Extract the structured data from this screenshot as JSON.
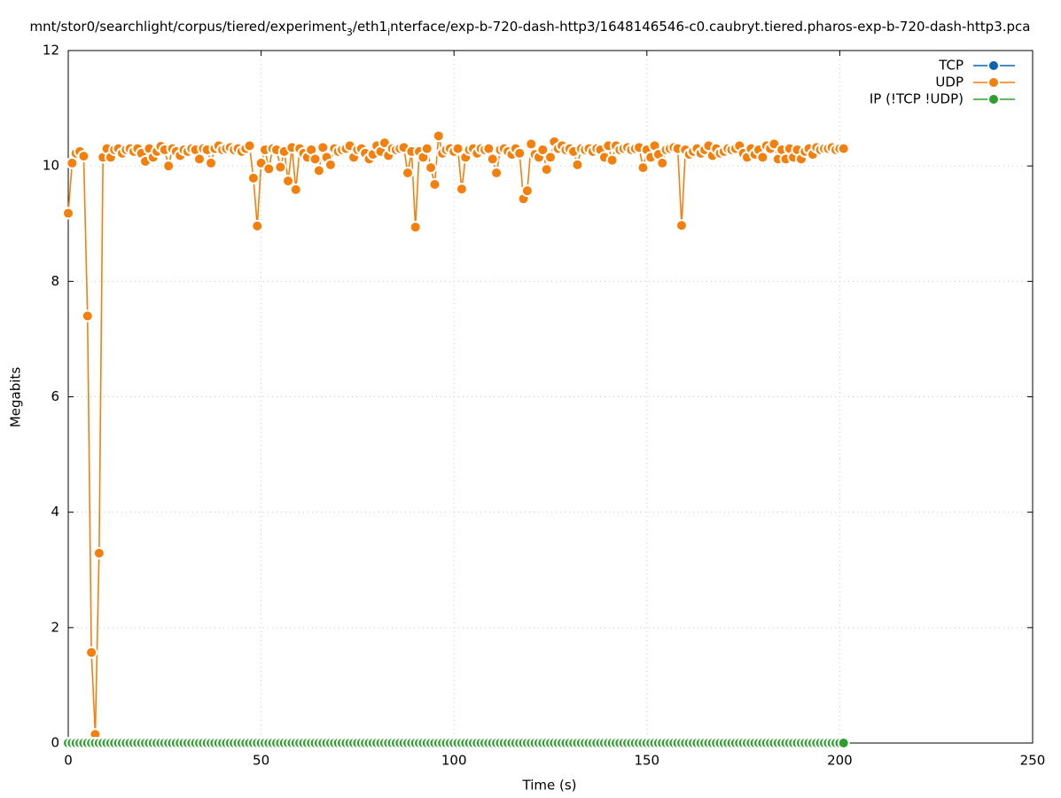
{
  "chart_data": {
    "type": "line",
    "title": [
      {
        "text": "mnt/stor0/searchlight/corpus/tiered/experiment"
      },
      {
        "text": "3",
        "sub": true
      },
      {
        "text": "/eth1"
      },
      {
        "text": "i",
        "sub": true
      },
      {
        "text": "nterface/exp-b-720-dash-http3/1648146546-c0.caubryt.tiered.pharos-exp-b-720-dash-http3.pca"
      }
    ],
    "x_label": "Time (s)",
    "y_label": "Megabits",
    "xlim": [
      0,
      250
    ],
    "xticks": [
      0,
      50,
      100,
      150,
      200,
      250
    ],
    "ylim": [
      0,
      12
    ],
    "yticks": [
      0,
      2,
      4,
      6,
      8,
      10,
      12
    ],
    "grid": true,
    "legend": "top-right",
    "x": [
      0,
      1,
      2,
      3,
      4,
      5,
      6,
      7,
      8,
      9,
      10,
      11,
      12,
      13,
      14,
      15,
      16,
      17,
      18,
      19,
      20,
      21,
      22,
      23,
      24,
      25,
      26,
      27,
      28,
      29,
      30,
      31,
      32,
      33,
      34,
      35,
      36,
      37,
      38,
      39,
      40,
      41,
      42,
      43,
      44,
      45,
      46,
      47,
      48,
      49,
      50,
      51,
      52,
      53,
      54,
      55,
      56,
      57,
      58,
      59,
      60,
      61,
      62,
      63,
      64,
      65,
      66,
      67,
      68,
      69,
      70,
      71,
      72,
      73,
      74,
      75,
      76,
      77,
      78,
      79,
      80,
      81,
      82,
      83,
      84,
      85,
      86,
      87,
      88,
      89,
      90,
      91,
      92,
      93,
      94,
      95,
      96,
      97,
      98,
      99,
      100,
      101,
      102,
      103,
      104,
      105,
      106,
      107,
      108,
      109,
      110,
      111,
      112,
      113,
      114,
      115,
      116,
      117,
      118,
      119,
      120,
      121,
      122,
      123,
      124,
      125,
      126,
      127,
      128,
      129,
      130,
      131,
      132,
      133,
      134,
      135,
      136,
      137,
      138,
      139,
      140,
      141,
      142,
      143,
      144,
      145,
      146,
      147,
      148,
      149,
      150,
      151,
      152,
      153,
      154,
      155,
      156,
      157,
      158,
      159,
      160,
      161,
      162,
      163,
      164,
      165,
      166,
      167,
      168,
      169,
      170,
      171,
      172,
      173,
      174,
      175,
      176,
      177,
      178,
      179,
      180,
      181,
      182,
      183,
      184,
      185,
      186,
      187,
      188,
      189,
      190,
      191,
      192,
      193,
      194,
      195,
      196,
      197,
      198,
      199,
      200,
      201
    ],
    "series": [
      {
        "name": "TCP",
        "color": "#0b63b0",
        "x": [],
        "values": []
      },
      {
        "name": "UDP",
        "color": "#f57f0c",
        "values": [
          9.18,
          10.05,
          10.22,
          10.25,
          10.17,
          7.4,
          1.57,
          0.15,
          3.29,
          10.15,
          10.3,
          10.15,
          10.28,
          10.3,
          10.22,
          10.28,
          10.3,
          10.25,
          10.3,
          10.22,
          10.08,
          10.3,
          10.15,
          10.25,
          10.34,
          10.28,
          10.0,
          10.3,
          10.25,
          10.18,
          10.28,
          10.25,
          10.3,
          10.28,
          10.12,
          10.3,
          10.28,
          10.05,
          10.3,
          10.35,
          10.28,
          10.3,
          10.32,
          10.28,
          10.3,
          10.25,
          10.3,
          10.35,
          9.79,
          8.96,
          10.05,
          10.28,
          9.95,
          10.3,
          10.28,
          9.98,
          10.25,
          9.74,
          10.32,
          9.59,
          10.3,
          10.22,
          10.15,
          10.28,
          10.12,
          9.92,
          10.32,
          10.15,
          10.02,
          10.3,
          10.25,
          10.28,
          10.3,
          10.35,
          10.15,
          10.28,
          10.3,
          10.22,
          10.12,
          10.2,
          10.35,
          10.25,
          10.4,
          10.18,
          10.3,
          10.28,
          10.3,
          10.32,
          9.88,
          10.25,
          8.94,
          10.25,
          10.15,
          10.3,
          9.97,
          9.68,
          10.52,
          10.22,
          10.28,
          10.3,
          10.25,
          10.3,
          9.6,
          10.15,
          10.28,
          10.3,
          10.22,
          10.3,
          10.28,
          10.3,
          10.12,
          9.88,
          10.28,
          10.3,
          10.25,
          10.2,
          10.3,
          10.22,
          9.43,
          9.57,
          10.38,
          10.2,
          10.15,
          10.28,
          9.94,
          10.15,
          10.42,
          10.3,
          10.35,
          10.28,
          10.3,
          10.25,
          10.02,
          10.3,
          10.28,
          10.3,
          10.25,
          10.3,
          10.28,
          10.15,
          10.35,
          10.1,
          10.35,
          10.28,
          10.3,
          10.32,
          10.28,
          10.3,
          10.32,
          9.97,
          10.28,
          10.15,
          10.35,
          10.2,
          10.05,
          10.28,
          10.3,
          10.32,
          10.3,
          8.97,
          10.28,
          10.2,
          10.25,
          10.3,
          10.22,
          10.28,
          10.35,
          10.18,
          10.3,
          10.22,
          10.25,
          10.3,
          10.28,
          10.3,
          10.35,
          10.22,
          10.15,
          10.3,
          10.2,
          10.28,
          10.15,
          10.35,
          10.3,
          10.38,
          10.12,
          10.28,
          10.12,
          10.3,
          10.15,
          10.28,
          10.12,
          10.25,
          10.3,
          10.2,
          10.32,
          10.28,
          10.3,
          10.3,
          10.32,
          10.28,
          10.3,
          10.3
        ]
      },
      {
        "name": "IP (!TCP  !UDP)",
        "color": "#2ca02c",
        "values": [
          0,
          0,
          0,
          0,
          0,
          0,
          0,
          0,
          0,
          0,
          0,
          0,
          0,
          0,
          0,
          0,
          0,
          0,
          0,
          0,
          0,
          0,
          0,
          0,
          0,
          0,
          0,
          0,
          0,
          0,
          0,
          0,
          0,
          0,
          0,
          0,
          0,
          0,
          0,
          0,
          0,
          0,
          0,
          0,
          0,
          0,
          0,
          0,
          0,
          0,
          0,
          0,
          0,
          0,
          0,
          0,
          0,
          0,
          0,
          0,
          0,
          0,
          0,
          0,
          0,
          0,
          0,
          0,
          0,
          0,
          0,
          0,
          0,
          0,
          0,
          0,
          0,
          0,
          0,
          0,
          0,
          0,
          0,
          0,
          0,
          0,
          0,
          0,
          0,
          0,
          0,
          0,
          0,
          0,
          0,
          0,
          0,
          0,
          0,
          0,
          0,
          0,
          0,
          0,
          0,
          0,
          0,
          0,
          0,
          0,
          0,
          0,
          0,
          0,
          0,
          0,
          0,
          0,
          0,
          0,
          0,
          0,
          0,
          0,
          0,
          0,
          0,
          0,
          0,
          0,
          0,
          0,
          0,
          0,
          0,
          0,
          0,
          0,
          0,
          0,
          0,
          0,
          0,
          0,
          0,
          0,
          0,
          0,
          0,
          0,
          0,
          0,
          0,
          0,
          0,
          0,
          0,
          0,
          0,
          0,
          0,
          0,
          0,
          0,
          0,
          0,
          0,
          0,
          0,
          0,
          0,
          0,
          0,
          0,
          0,
          0,
          0,
          0,
          0,
          0,
          0,
          0,
          0,
          0,
          0,
          0,
          0,
          0,
          0,
          0,
          0,
          0,
          0,
          0,
          0,
          0,
          0,
          0,
          0,
          0,
          0,
          0
        ]
      }
    ]
  }
}
